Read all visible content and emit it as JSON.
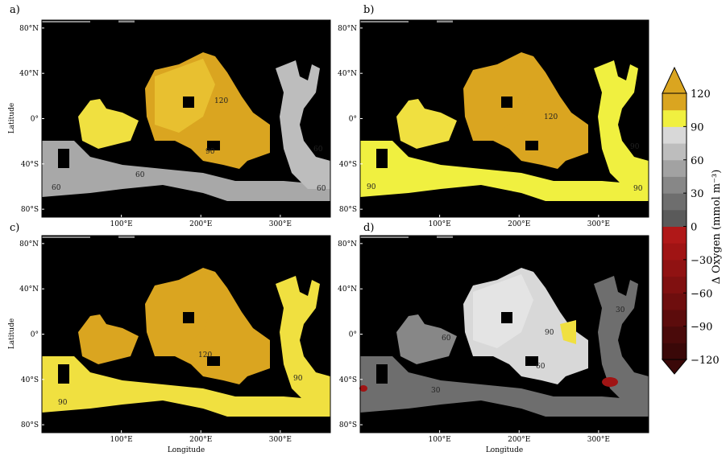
{
  "x_label": "Longitude",
  "y_label": "Latitude",
  "xlim": [
    0,
    363
  ],
  "ylim": [
    -87,
    87
  ],
  "lat_ticks": [
    {
      "value": 80,
      "label": "80°N"
    },
    {
      "value": 40,
      "label": "40°N"
    },
    {
      "value": 0,
      "label": "0°"
    },
    {
      "value": -40,
      "label": "40°S"
    },
    {
      "value": -80,
      "label": "80°S"
    }
  ],
  "lon_ticks": [
    {
      "value": 100,
      "label": "100°E"
    },
    {
      "value": 200,
      "label": "200°E"
    },
    {
      "value": 300,
      "label": "300°E"
    }
  ],
  "panels": [
    {
      "label": "a)",
      "contours": [
        120,
        90,
        60,
        60,
        60,
        60
      ]
    },
    {
      "label": "b)",
      "contours": [
        120,
        90,
        90,
        90
      ]
    },
    {
      "label": "c)",
      "contours": [
        120,
        90,
        90
      ]
    },
    {
      "label": "d)",
      "contours": [
        60,
        90,
        60,
        30,
        30
      ]
    }
  ],
  "colorbar": {
    "label": "Δ Oxygen (mmol m⁻³)",
    "lim": [
      -120,
      120
    ],
    "ticks": [
      {
        "value": -120,
        "label": "−120"
      },
      {
        "value": -90,
        "label": "−90"
      },
      {
        "value": -60,
        "label": "−60"
      },
      {
        "value": -30,
        "label": "−30"
      },
      0,
      30,
      60,
      90,
      120
    ],
    "colors": [
      "#3a0808",
      "#4a0a0a",
      "#5c0c0c",
      "#6e0e0e",
      "#801010",
      "#901212",
      "#a01414",
      "#b01818",
      "#5a5a5a",
      "#6e6e6e",
      "#878787",
      "#a2a2a2",
      "#bdbdbd",
      "#d8d8d8",
      "#f0f040",
      "#daa520"
    ]
  }
}
